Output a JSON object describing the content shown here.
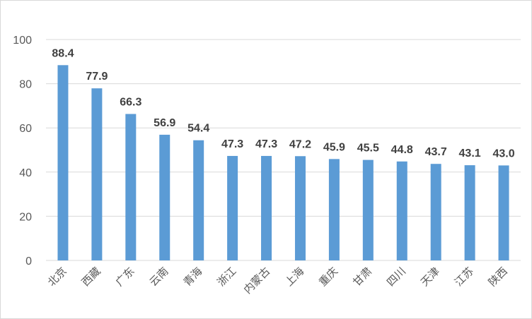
{
  "chart_data": {
    "type": "bar",
    "title": "",
    "xlabel": "",
    "ylabel": "",
    "categories": [
      "北京",
      "西藏",
      "广东",
      "云南",
      "青海",
      "浙江",
      "内蒙古",
      "上海",
      "重庆",
      "甘肃",
      "四川",
      "天津",
      "江苏",
      "陕西"
    ],
    "values": [
      88.4,
      77.9,
      66.3,
      56.9,
      54.4,
      47.3,
      47.3,
      47.2,
      45.9,
      45.5,
      44.8,
      43.7,
      43.1,
      43.0
    ],
    "value_labels": [
      "88.4",
      "77.9",
      "66.3",
      "56.9",
      "54.4",
      "47.3",
      "47.3",
      "47.2",
      "45.9",
      "45.5",
      "44.8",
      "43.7",
      "43.1",
      "43.0"
    ],
    "ylim": [
      0,
      100
    ],
    "yticks": [
      0,
      20,
      40,
      60,
      80,
      100
    ],
    "ytick_labels": [
      "0",
      "20",
      "40",
      "60",
      "80",
      "100"
    ],
    "grid": true,
    "legend": "none",
    "bar_color": "#5b9bd5"
  }
}
